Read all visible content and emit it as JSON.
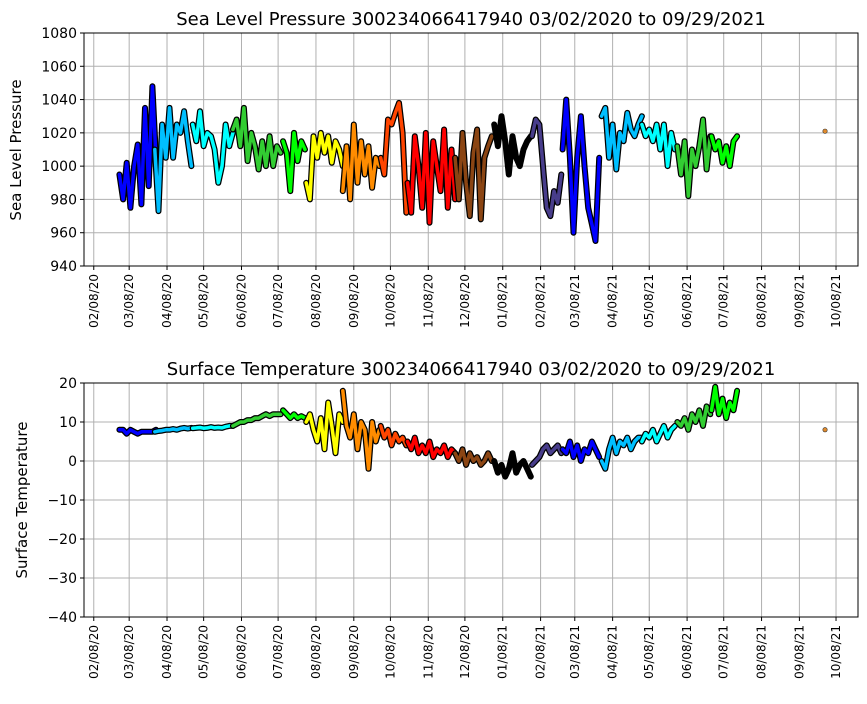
{
  "chart_data": [
    {
      "type": "line",
      "title": "Sea Level Pressure 300234066417940  03/02/2020 to 09/29/2021",
      "xlabel": "",
      "ylabel": "Sea Level Pressure",
      "ylim": [
        940,
        1080
      ],
      "yticks": [
        "940",
        "960",
        "980",
        "1000",
        "1020",
        "1040",
        "1060",
        "1080"
      ],
      "xticks": [
        "02/08/20",
        "03/08/20",
        "04/08/20",
        "05/08/20",
        "06/08/20",
        "07/08/20",
        "08/08/20",
        "09/08/20",
        "10/08/20",
        "11/08/20",
        "12/08/20",
        "01/08/21",
        "02/08/21",
        "03/08/21",
        "04/08/21",
        "05/08/21",
        "06/08/21",
        "07/08/21",
        "08/08/21",
        "09/08/21",
        "10/08/21"
      ],
      "xtick_dates": [
        "2020-02-08",
        "2020-03-08",
        "2020-04-08",
        "2020-05-08",
        "2020-06-08",
        "2020-07-08",
        "2020-08-08",
        "2020-09-08",
        "2020-10-08",
        "2020-11-08",
        "2020-12-08",
        "2021-01-08",
        "2021-02-08",
        "2021-03-08",
        "2021-04-08",
        "2021-05-08",
        "2021-06-08",
        "2021-07-08",
        "2021-08-08",
        "2021-09-08",
        "2021-10-08"
      ],
      "xlim": [
        "2020-01-31",
        "2021-10-26"
      ],
      "grid": true,
      "key": "pressure"
    },
    {
      "type": "line",
      "title": "Surface Temperature 300234066417940  03/02/2020 to 09/29/2021",
      "xlabel": "",
      "ylabel": "Surface Temperature",
      "ylim": [
        -40,
        20
      ],
      "yticks": [
        "−40",
        "−30",
        "−20",
        "−10",
        "0",
        "10",
        "20"
      ],
      "xticks": [
        "02/08/20",
        "03/08/20",
        "04/08/20",
        "05/08/20",
        "06/08/20",
        "07/08/20",
        "08/08/20",
        "09/08/20",
        "10/08/20",
        "11/08/20",
        "12/08/20",
        "01/08/21",
        "02/08/21",
        "03/08/21",
        "04/08/21",
        "05/08/21",
        "06/08/21",
        "07/08/21",
        "08/08/21",
        "09/08/21",
        "10/08/21"
      ],
      "xtick_dates": [
        "2020-02-08",
        "2020-03-08",
        "2020-04-08",
        "2020-05-08",
        "2020-06-08",
        "2020-07-08",
        "2020-08-08",
        "2020-09-08",
        "2020-10-08",
        "2020-11-08",
        "2020-12-08",
        "2021-01-08",
        "2021-02-08",
        "2021-03-08",
        "2021-04-08",
        "2021-05-08",
        "2021-06-08",
        "2021-07-08",
        "2021-08-08",
        "2021-09-08",
        "2021-10-08"
      ],
      "xlim": [
        "2020-01-31",
        "2021-10-26"
      ],
      "grid": true,
      "key": "temp"
    }
  ],
  "segments": [
    {
      "color": "#0000ff",
      "start": "2020-02-29",
      "step_days": 3,
      "pressure": [
        995,
        980,
        1002,
        975,
        1000,
        1013,
        977,
        1035,
        988,
        1048,
        1005
      ],
      "temp": [
        8,
        8,
        7,
        8,
        7.5,
        7,
        7.5,
        7.5,
        7.5,
        7.5,
        8
      ]
    },
    {
      "color": "#00bfff",
      "start": "2020-03-29",
      "step_days": 3,
      "pressure": [
        1010,
        973,
        1025,
        1005,
        1035,
        1005,
        1025,
        1020,
        1033,
        1015,
        1000
      ],
      "temp": [
        7.5,
        7.7,
        7.8,
        8,
        8,
        8.2,
        8,
        8.3,
        8.5,
        8.3,
        8.5
      ]
    },
    {
      "color": "#00ffff",
      "start": "2020-04-29",
      "step_days": 3,
      "pressure": [
        1025,
        1015,
        1033,
        1012,
        1020,
        1018,
        1010,
        990,
        1000,
        1025,
        1012,
        1020
      ],
      "temp": [
        8.4,
        8.5,
        8.6,
        8.4,
        8.5,
        8.7,
        8.5,
        8.6,
        8.5,
        8.8,
        9,
        9
      ]
    },
    {
      "color": "#32cd32",
      "start": "2020-06-01",
      "step_days": 3,
      "pressure": [
        1022,
        1028,
        1012,
        1035,
        1003,
        1020,
        1012,
        998,
        1015,
        1000,
        1018,
        1000,
        1012,
        1008
      ],
      "temp": [
        9,
        9.5,
        10,
        10,
        10.5,
        10.5,
        11,
        11,
        11.5,
        12,
        11.5,
        12,
        12,
        12
      ]
    },
    {
      "color": "#00ff00",
      "start": "2020-07-12",
      "step_days": 3,
      "pressure": [
        1015,
        1008,
        985,
        1020,
        1003,
        1015,
        1010
      ],
      "temp": [
        13,
        12,
        11,
        12,
        11,
        11.5,
        11
      ]
    },
    {
      "color": "#ffff00",
      "start": "2020-07-31",
      "step_days": 3,
      "pressure": [
        990,
        980,
        1018,
        1005,
        1020,
        1008,
        1018,
        1002,
        1015,
        1010,
        1000
      ],
      "temp": [
        10,
        12,
        8,
        5,
        11,
        3,
        15,
        9,
        2,
        12,
        10
      ]
    },
    {
      "color": "#ff8c00",
      "start": "2020-08-30",
      "step_days": 3,
      "pressure": [
        985,
        1012,
        980,
        1025,
        990,
        1015,
        995,
        1012,
        987,
        1005,
        1000
      ],
      "temp": [
        18,
        9,
        6,
        12,
        3,
        10,
        8,
        -2,
        10,
        5,
        8
      ]
    },
    {
      "color": "#ff4500",
      "start": "2020-09-30",
      "step_days": 3,
      "pressure": [
        1005,
        995,
        1028,
        1025,
        1032,
        1038,
        1020,
        972
      ],
      "temp": [
        9,
        6,
        8,
        4,
        7,
        5,
        6,
        4
      ]
    },
    {
      "color": "#ff0000",
      "start": "2020-10-22",
      "step_days": 3,
      "pressure": [
        990,
        972,
        1018,
        1000,
        975,
        1020,
        966,
        1015,
        1000,
        985,
        1022,
        975,
        1010,
        980
      ],
      "temp": [
        5,
        3,
        6,
        2,
        4,
        2,
        5,
        1,
        3,
        2,
        4,
        1,
        3,
        2
      ]
    },
    {
      "color": "#8b4513",
      "start": "2020-11-30",
      "step_days": 3,
      "pressure": [
        1005,
        980,
        1020,
        990,
        970,
        1008,
        1022,
        968,
        1005,
        1012,
        1018
      ],
      "temp": [
        2,
        0,
        3,
        -1,
        2,
        0,
        1,
        -1,
        0,
        2,
        0
      ]
    },
    {
      "color": "#000000",
      "start": "2021-01-01",
      "step_days": 3,
      "pressure": [
        1025,
        1012,
        1030,
        1015,
        995,
        1018,
        1005,
        1000,
        1010,
        1015,
        1018
      ],
      "temp": [
        0,
        -3,
        -1,
        -4,
        -2,
        2,
        -3,
        -1,
        0,
        -2,
        -4
      ]
    },
    {
      "color": "#483d8b",
      "start": "2021-02-01",
      "step_days": 3,
      "pressure": [
        1018,
        1028,
        1025,
        1000,
        975,
        970,
        985,
        978,
        995
      ],
      "temp": [
        -1,
        0,
        1,
        3,
        4,
        2,
        3,
        4,
        2
      ]
    },
    {
      "color": "#0000ff",
      "start": "2021-02-26",
      "step_days": 3,
      "pressure": [
        1010,
        1040,
        1005,
        960,
        1005,
        1030,
        1000,
        975,
        965,
        955,
        1005
      ],
      "temp": [
        3,
        2,
        5,
        1,
        4,
        0,
        3,
        2,
        5,
        3,
        1
      ]
    },
    {
      "color": "#00bfff",
      "start": "2021-03-30",
      "step_days": 3,
      "pressure": [
        1030,
        1035,
        1005,
        1025,
        998,
        1020,
        1015,
        1032,
        1022,
        1018,
        1025,
        1030
      ],
      "temp": [
        0,
        -2,
        3,
        6,
        2,
        5,
        4,
        6,
        3,
        5,
        6,
        6
      ]
    },
    {
      "color": "#00ffff",
      "start": "2021-05-02",
      "step_days": 3,
      "pressure": [
        1025,
        1018,
        1022,
        1015,
        1025,
        1010,
        1025,
        1000,
        1020,
        1010
      ],
      "temp": [
        5,
        7,
        6,
        8,
        5,
        7,
        9,
        6,
        8,
        9
      ]
    },
    {
      "color": "#32cd32",
      "start": "2021-05-31",
      "step_days": 3,
      "pressure": [
        1012,
        995,
        1015,
        982,
        1010,
        1000,
        1012,
        1028,
        998,
        1018
      ],
      "temp": [
        10,
        9,
        11,
        8,
        12,
        10,
        13,
        9,
        14,
        12
      ]
    },
    {
      "color": "#00ff00",
      "start": "2021-06-28",
      "step_days": 3,
      "pressure": [
        1018,
        1010,
        1015,
        1002,
        1012,
        1000,
        1015,
        1018
      ],
      "temp": [
        13,
        19,
        12,
        16,
        11,
        15,
        13,
        18
      ]
    }
  ],
  "outlier": {
    "date": "2021-09-29",
    "pressure": 1021,
    "temp": 8,
    "color": "#e08a2c"
  }
}
